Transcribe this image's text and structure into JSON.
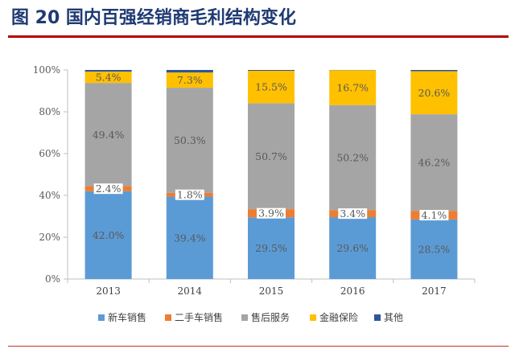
{
  "figure": {
    "title": "图 20  国内百强经销商毛利结构变化"
  },
  "chart_data": {
    "type": "bar",
    "stacked": true,
    "categories": [
      "2013",
      "2014",
      "2015",
      "2016",
      "2017"
    ],
    "series": [
      {
        "name": "新车销售",
        "color": "#5b9bd5",
        "values": [
          42.0,
          39.4,
          29.5,
          29.6,
          28.5
        ],
        "labels": [
          "42.0%",
          "39.4%",
          "29.5%",
          "29.6%",
          "28.5%"
        ]
      },
      {
        "name": "二手车销售",
        "color": "#ed7d31",
        "values": [
          2.4,
          1.8,
          3.9,
          3.4,
          4.1
        ],
        "labels": [
          "2.4%",
          "1.8%",
          "3.9%",
          "3.4%",
          "4.1%"
        ]
      },
      {
        "name": "售后服务",
        "color": "#a5a5a5",
        "values": [
          49.4,
          50.3,
          50.7,
          50.2,
          46.2
        ],
        "labels": [
          "49.4%",
          "50.3%",
          "50.7%",
          "50.2%",
          "46.2%"
        ]
      },
      {
        "name": "金融保险",
        "color": "#ffc000",
        "values": [
          5.4,
          7.3,
          15.5,
          16.7,
          20.6
        ],
        "labels": [
          "5.4%",
          "7.3%",
          "15.5%",
          "16.7%",
          "20.6%"
        ]
      },
      {
        "name": "其他",
        "color": "#2e5597",
        "values": [
          0.8,
          1.2,
          0.4,
          0.1,
          0.6
        ],
        "labels": [
          "",
          "",
          "",
          "",
          ""
        ]
      }
    ],
    "ylim": [
      0,
      100
    ],
    "yticks": [
      "0%",
      "20%",
      "40%",
      "60%",
      "80%",
      "100%"
    ],
    "grid": false,
    "legend_position": "bottom",
    "label_color": "#595959"
  }
}
